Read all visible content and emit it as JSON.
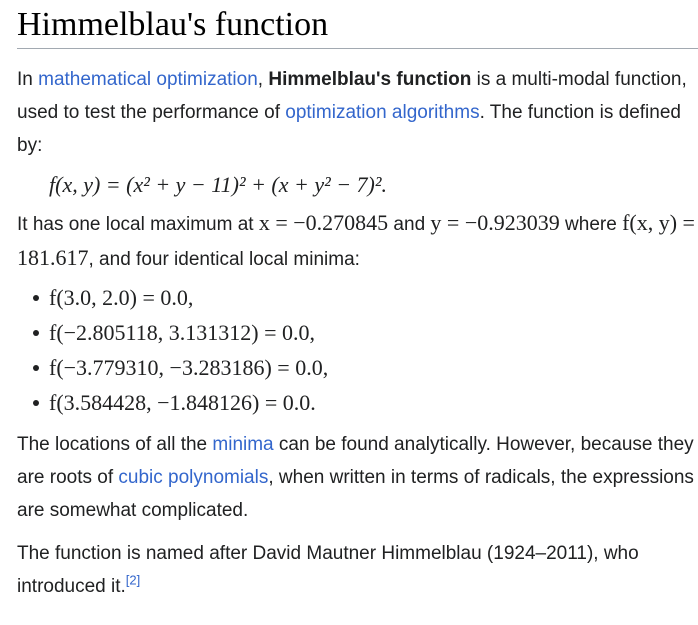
{
  "title": "Himmelblau's function",
  "intro": {
    "t1": "In ",
    "link1": "mathematical optimization",
    "t2": ", ",
    "bold": "Himmelblau's function",
    "t3": " is a multi-modal function, used to test the performance of ",
    "link2": "optimization algorithms",
    "t4": ". The function is defined by:"
  },
  "formula": "f(x, y) = (x² + y − 11)² + (x + y² − 7)².",
  "maximum": {
    "t1": "It has one local maximum at ",
    "x_expr": "x = −0.270845",
    "t2": " and ",
    "y_expr": "y = −0.923039",
    "t3": " where ",
    "f_expr": "f(x, y) = 181.617",
    "t4": ", and four identical local minima:"
  },
  "minima": [
    "f(3.0, 2.0) = 0.0,",
    "f(−2.805118, 3.131312) = 0.0,",
    "f(−3.779310, −3.283186) = 0.0,",
    "f(3.584428, −1.848126) = 0.0."
  ],
  "locations": {
    "t1": "The locations of all the ",
    "link1": "minima",
    "t2": " can be found analytically. However, because they are roots of ",
    "link2": "cubic polynomials",
    "t3": ", when written in terms of radicals, the expressions are somewhat complicated."
  },
  "named": {
    "t1": "The function is named after David Mautner Himmelblau (1924–2011), who introduced it.",
    "ref": "[2]"
  }
}
